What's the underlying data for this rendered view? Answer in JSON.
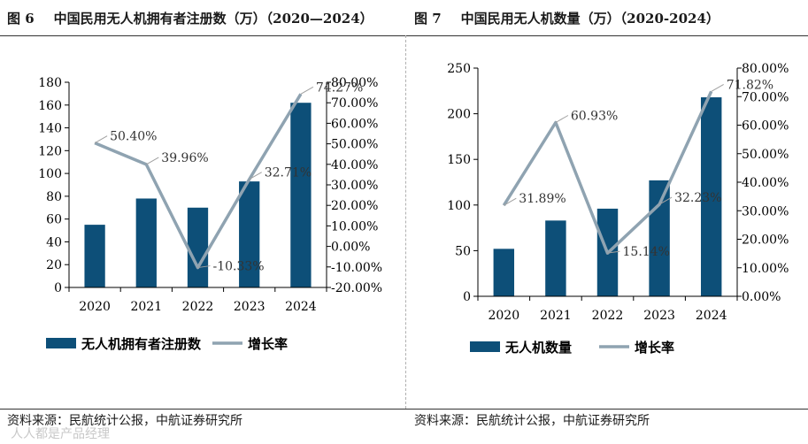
{
  "colors": {
    "bar": "#0d4f78",
    "line": "#8fa3b1",
    "axis": "#000000"
  },
  "panels": [
    {
      "figure_label": "图 6",
      "title": "中国民用无人机拥有者注册数（万）（2020—2024）",
      "source": "资料来源：民航统计公报，中航证券研究所",
      "chart_data": {
        "type": "bar+line",
        "categories": [
          "2020",
          "2021",
          "2022",
          "2023",
          "2024"
        ],
        "series": [
          {
            "name": "无人机拥有者注册数",
            "kind": "bar",
            "axis": "left",
            "values": [
              55,
              78,
              70,
              93,
              162
            ]
          },
          {
            "name": "增长率",
            "kind": "line",
            "axis": "right",
            "values": [
              50.4,
              39.96,
              -10.33,
              32.71,
              74.27
            ],
            "labels": [
              "50.40%",
              "39.96%",
              "-10.33%",
              "32.71%",
              "74.27%"
            ]
          }
        ],
        "left_axis": {
          "min": 0,
          "max": 180,
          "step": 20,
          "ticks": [
            "0",
            "20",
            "40",
            "60",
            "80",
            "100",
            "120",
            "140",
            "160",
            "180"
          ]
        },
        "right_axis": {
          "min": -20,
          "max": 80,
          "step": 10,
          "ticks": [
            "-20.00%",
            "-10.00%",
            "0.00%",
            "10.00%",
            "20.00%",
            "30.00%",
            "40.00%",
            "50.00%",
            "60.00%",
            "70.00%",
            "80.00%"
          ]
        },
        "legend_position": "bottom"
      }
    },
    {
      "figure_label": "图 7",
      "title": "中国民用无人机数量（万）（2020-2024）",
      "source": "资料来源：民航统计公报，中航证券研究所",
      "chart_data": {
        "type": "bar+line",
        "categories": [
          "2020",
          "2021",
          "2022",
          "2023",
          "2024"
        ],
        "series": [
          {
            "name": "无人机数量",
            "kind": "bar",
            "axis": "left",
            "values": [
              52,
              83,
              96,
              127,
              218
            ]
          },
          {
            "name": "增长率",
            "kind": "line",
            "axis": "right",
            "values": [
              31.89,
              60.93,
              15.14,
              32.23,
              71.82
            ],
            "labels": [
              "31.89%",
              "60.93%",
              "15.14%",
              "32.23%",
              "71.82%"
            ]
          }
        ],
        "left_axis": {
          "min": 0,
          "max": 250,
          "step": 50,
          "ticks": [
            "0",
            "50",
            "100",
            "150",
            "200",
            "250"
          ]
        },
        "right_axis": {
          "min": 0,
          "max": 80,
          "step": 10,
          "ticks": [
            "0.00%",
            "10.00%",
            "20.00%",
            "30.00%",
            "40.00%",
            "50.00%",
            "60.00%",
            "70.00%",
            "80.00%"
          ]
        },
        "legend_position": "bottom"
      }
    }
  ],
  "watermark": "人人都是产品经理"
}
